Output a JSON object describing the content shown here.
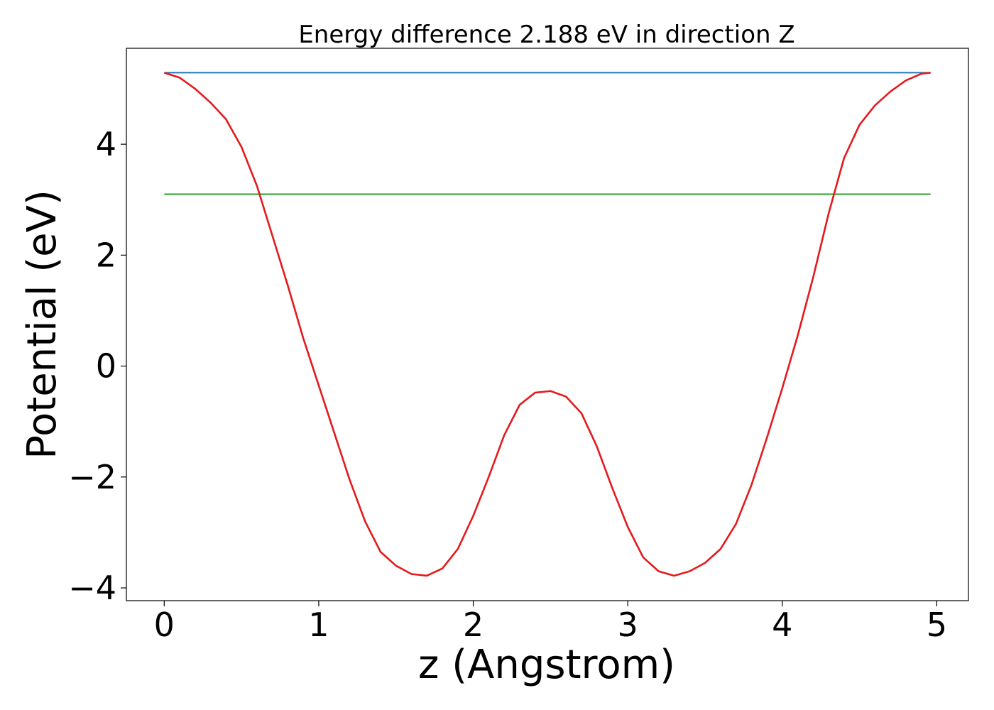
{
  "chart_data": {
    "type": "line",
    "title": "Energy difference 2.188 eV in direction Z",
    "xlabel": "z (Angstrom)",
    "ylabel": "Potential (eV)",
    "xlim": [
      -0.245,
      5.205
    ],
    "ylim": [
      -4.23,
      5.73
    ],
    "xticks": [
      0,
      1,
      2,
      3,
      4,
      5
    ],
    "yticks": [
      -4,
      -2,
      0,
      2,
      4
    ],
    "xtick_labels": [
      "0",
      "1",
      "2",
      "3",
      "4",
      "5"
    ],
    "ytick_labels": [
      "−4",
      "−2",
      "0",
      "2",
      "4"
    ],
    "grid": false,
    "series": [
      {
        "color": "#1f77b4",
        "x": [
          0,
          4.96
        ],
        "y": [
          5.29,
          5.29
        ]
      },
      {
        "color": "#2ca02c",
        "x": [
          0,
          4.96
        ],
        "y": [
          3.1,
          3.1
        ]
      },
      {
        "color": "#e41a1c",
        "x": [
          0,
          0.1,
          0.2,
          0.3,
          0.4,
          0.5,
          0.6,
          0.7,
          0.8,
          0.9,
          1.0,
          1.1,
          1.2,
          1.3,
          1.4,
          1.5,
          1.6,
          1.7,
          1.8,
          1.9,
          2.0,
          2.1,
          2.2,
          2.3,
          2.4,
          2.5,
          2.6,
          2.7,
          2.8,
          2.9,
          3.0,
          3.1,
          3.2,
          3.3,
          3.4,
          3.5,
          3.6,
          3.7,
          3.8,
          3.9,
          4.0,
          4.1,
          4.2,
          4.3,
          4.4,
          4.5,
          4.6,
          4.7,
          4.8,
          4.9,
          4.96
        ],
        "y": [
          5.29,
          5.2,
          5.0,
          4.75,
          4.45,
          3.95,
          3.25,
          2.35,
          1.45,
          0.5,
          -0.35,
          -1.2,
          -2.05,
          -2.8,
          -3.35,
          -3.6,
          -3.75,
          -3.78,
          -3.65,
          -3.3,
          -2.7,
          -2.0,
          -1.25,
          -0.7,
          -0.48,
          -0.45,
          -0.55,
          -0.85,
          -1.45,
          -2.2,
          -2.9,
          -3.45,
          -3.7,
          -3.78,
          -3.7,
          -3.55,
          -3.3,
          -2.85,
          -2.15,
          -1.3,
          -0.4,
          0.55,
          1.6,
          2.75,
          3.75,
          4.35,
          4.7,
          4.95,
          5.15,
          5.27,
          5.29
        ]
      }
    ]
  }
}
